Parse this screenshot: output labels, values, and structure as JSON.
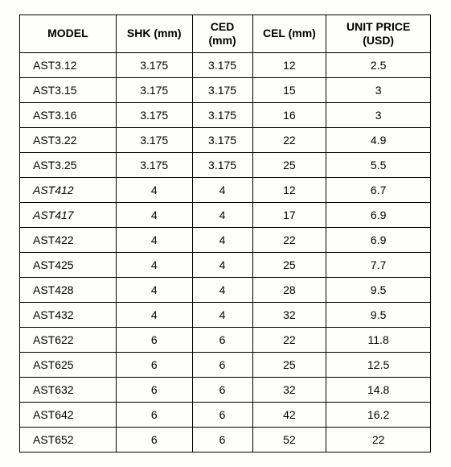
{
  "table": {
    "columns": [
      {
        "label": "MODEL"
      },
      {
        "label": "SHK (mm)"
      },
      {
        "label": "CED (mm)"
      },
      {
        "label": "CEL (mm)"
      },
      {
        "label": "UNIT PRICE (USD)"
      }
    ],
    "rows": [
      {
        "model": "AST3.12",
        "shk": "3.175",
        "ced": "3.175",
        "cel": "12",
        "price": "2.5",
        "italic": false
      },
      {
        "model": "AST3.15",
        "shk": "3.175",
        "ced": "3.175",
        "cel": "15",
        "price": "3",
        "italic": false
      },
      {
        "model": "AST3.16",
        "shk": "3.175",
        "ced": "3.175",
        "cel": "16",
        "price": "3",
        "italic": false
      },
      {
        "model": "AST3.22",
        "shk": "3.175",
        "ced": "3.175",
        "cel": "22",
        "price": "4.9",
        "italic": false
      },
      {
        "model": "AST3.25",
        "shk": "3.175",
        "ced": "3.175",
        "cel": "25",
        "price": "5.5",
        "italic": false
      },
      {
        "model": "AST412",
        "shk": "4",
        "ced": "4",
        "cel": "12",
        "price": "6.7",
        "italic": true
      },
      {
        "model": "AST417",
        "shk": "4",
        "ced": "4",
        "cel": "17",
        "price": "6.9",
        "italic": true
      },
      {
        "model": "AST422",
        "shk": "4",
        "ced": "4",
        "cel": "22",
        "price": "6.9",
        "italic": false
      },
      {
        "model": "AST425",
        "shk": "4",
        "ced": "4",
        "cel": "25",
        "price": "7.7",
        "italic": false
      },
      {
        "model": "AST428",
        "shk": "4",
        "ced": "4",
        "cel": "28",
        "price": "9.5",
        "italic": false
      },
      {
        "model": "AST432",
        "shk": "4",
        "ced": "4",
        "cel": "32",
        "price": "9.5",
        "italic": false
      },
      {
        "model": "AST622",
        "shk": "6",
        "ced": "6",
        "cel": "22",
        "price": "11.8",
        "italic": false
      },
      {
        "model": "AST625",
        "shk": "6",
        "ced": "6",
        "cel": "25",
        "price": "12.5",
        "italic": false
      },
      {
        "model": "AST632",
        "shk": "6",
        "ced": "6",
        "cel": "32",
        "price": "14.8",
        "italic": false
      },
      {
        "model": "AST642",
        "shk": "6",
        "ced": "6",
        "cel": "42",
        "price": "16.2",
        "italic": false
      },
      {
        "model": "AST652",
        "shk": "6",
        "ced": "6",
        "cel": "52",
        "price": "22",
        "italic": false
      }
    ],
    "style": {
      "background_color": "#fefefb",
      "border_color": "#000000",
      "header_fontsize": 14,
      "body_fontsize": 14,
      "font_family": "Arial"
    }
  }
}
